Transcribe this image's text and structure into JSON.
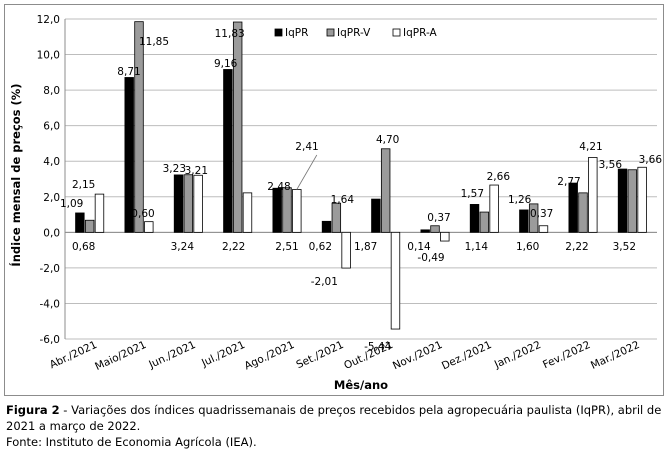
{
  "chart_data": {
    "type": "bar",
    "xlabel": "Mês/ano",
    "ylabel": "Índice mensal de preços (%)",
    "ylim": [
      -6.0,
      12.0
    ],
    "yticks": [
      "-6,0",
      "-4,0",
      "-2,0",
      "0,0",
      "2,0",
      "4,0",
      "6,0",
      "8,0",
      "10,0",
      "12,0"
    ],
    "grid": true,
    "legend_position": "top-right",
    "categories": [
      "Abr./2021",
      "Maio/2021",
      "Jun./2021",
      "Jul./2021",
      "Ago./2021",
      "Set./2021",
      "Out./2021",
      "Nov./2021",
      "Dez./2021",
      "Jan./2022",
      "Fev./2022",
      "Mar./2022"
    ],
    "series": [
      {
        "name": "IqPR",
        "color": "#000000",
        "values": [
          1.09,
          8.71,
          3.23,
          9.16,
          2.48,
          0.62,
          1.87,
          0.14,
          1.57,
          1.26,
          2.77,
          3.56
        ],
        "labels": [
          "1,09",
          "8,71",
          "3,23",
          "9,16",
          "2,48",
          "0,62",
          "1,87",
          "0,14",
          "1,57",
          "1,26",
          "2,77",
          "3,56"
        ]
      },
      {
        "name": "IqPR-V",
        "color": "#9b9b9b",
        "values": [
          0.68,
          11.85,
          3.24,
          11.83,
          2.51,
          1.64,
          4.7,
          0.37,
          1.14,
          1.6,
          2.22,
          3.52
        ],
        "labels": [
          "0,68",
          "11,85",
          "3,24",
          "11,83",
          "2,51",
          "1,64",
          "4,70",
          "0,37",
          "1,14",
          "1,60",
          "2,22",
          "3,52"
        ]
      },
      {
        "name": "IqPR-A",
        "color": "#ffffff",
        "values": [
          2.15,
          0.6,
          3.21,
          2.22,
          2.41,
          -2.01,
          -5.44,
          -0.49,
          2.66,
          0.37,
          4.21,
          3.66
        ],
        "labels": [
          "2,15",
          "0,60",
          "3,21",
          "2,22",
          "2,41",
          "-2,01",
          "-5,44",
          "-0,49",
          "2,66",
          "0,37",
          "4,21",
          "3,66"
        ]
      }
    ]
  },
  "caption": {
    "figure_label": "Figura 2",
    "text": " - Variações dos índices quadrissemanais de preços recebidos pela agropecuária paulista (IqPR), abril de 2021 a março de 2022.",
    "source": "Fonte: Instituto de Economia Agrícola (IEA)."
  }
}
